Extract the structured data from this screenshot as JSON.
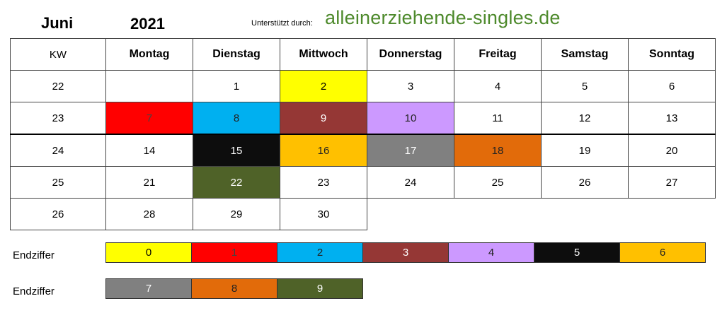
{
  "header": {
    "month": "Juni",
    "year": "2021",
    "supported_by": "Unterstützt durch:",
    "brand": "alleinerziehende-singles.de"
  },
  "calendar": {
    "columns": [
      "KW",
      "Montag",
      "Dienstag",
      "Mittwoch",
      "Donnerstag",
      "Freitag",
      "Samstag",
      "Sonntag"
    ],
    "rows": [
      {
        "kw": "22",
        "days": [
          "",
          "1",
          "2",
          "3",
          "4",
          "5",
          "6"
        ]
      },
      {
        "kw": "23",
        "days": [
          "7",
          "8",
          "9",
          "10",
          "11",
          "12",
          "13"
        ]
      },
      {
        "kw": "24",
        "days": [
          "14",
          "15",
          "16",
          "17",
          "18",
          "19",
          "20"
        ]
      },
      {
        "kw": "25",
        "days": [
          "21",
          "22",
          "23",
          "24",
          "25",
          "26",
          "27"
        ]
      },
      {
        "kw": "26",
        "days": [
          "28",
          "29",
          "30",
          "",
          "",
          "",
          ""
        ]
      }
    ]
  },
  "legend": {
    "label": "Endziffer",
    "colors": {
      "0": "#ffff00",
      "1": "#ff0000",
      "2": "#00b0f0",
      "3": "#953735",
      "4": "#cc99ff",
      "5": "#0d0d0d",
      "6": "#ffc000",
      "7": "#808080",
      "8": "#e26b0a",
      "9": "#4f6228"
    },
    "row1": [
      "0",
      "1",
      "2",
      "3",
      "4",
      "5",
      "6"
    ],
    "row2": [
      "7",
      "8",
      "9"
    ]
  }
}
